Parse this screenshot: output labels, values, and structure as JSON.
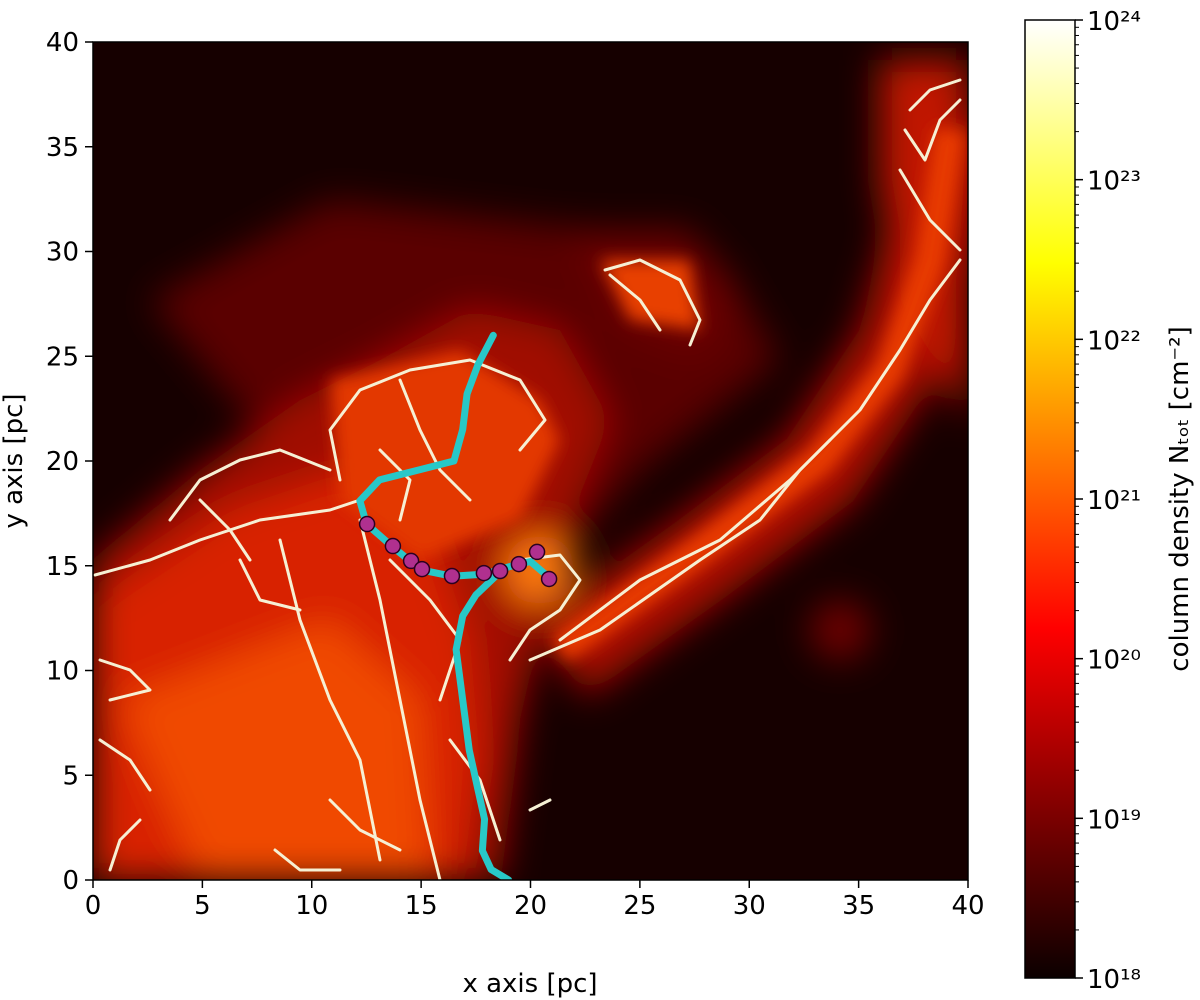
{
  "chart_data": {
    "type": "heatmap",
    "xlabel": "x axis [pc]",
    "ylabel": "y axis [pc]",
    "xlim": [
      0,
      40
    ],
    "ylim": [
      0,
      40
    ],
    "xticks": [
      0,
      5,
      10,
      15,
      20,
      25,
      30,
      35,
      40
    ],
    "yticks": [
      0,
      5,
      10,
      15,
      20,
      25,
      30,
      35,
      40
    ],
    "colorbar": {
      "label": "column density Nₜₒₜ [cm⁻²]",
      "cmap": "hot",
      "log_scale": true,
      "clim": [
        1e+18,
        1e+24
      ],
      "ticks": [
        {
          "value": 1e+18,
          "label": "10¹⁸"
        },
        {
          "value": 1e+19,
          "label": "10¹⁹"
        },
        {
          "value": 1e+20,
          "label": "10²⁰"
        },
        {
          "value": 1e+21,
          "label": "10²¹"
        },
        {
          "value": 1e+22,
          "label": "10²²"
        },
        {
          "value": 1e+23,
          "label": "10²³"
        },
        {
          "value": 1e+24,
          "label": "10²⁴"
        }
      ]
    },
    "series": [
      {
        "type": "line",
        "color": "#28c8c8",
        "x": [
          18.3,
          17.6,
          17.1,
          16.9,
          16.5,
          15.0,
          13.1,
          12.2,
          12.5,
          13.7,
          15.0,
          16.4,
          17.9,
          19.5,
          20.0,
          20.9
        ],
        "y": [
          26.0,
          24.6,
          23.2,
          21.5,
          20.0,
          19.6,
          19.1,
          18.1,
          17.0,
          15.9,
          14.8,
          14.5,
          14.6,
          15.1,
          15.2,
          14.4
        ]
      },
      {
        "type": "line",
        "color": "#28c8c8",
        "x": [
          18.6,
          17.5,
          16.9,
          16.6,
          16.9,
          17.2,
          17.6,
          17.9,
          17.8,
          18.2,
          19.0
        ],
        "y": [
          14.7,
          13.6,
          12.6,
          11.0,
          8.6,
          6.2,
          4.3,
          2.9,
          1.4,
          0.5,
          0.0
        ]
      },
      {
        "type": "scatter",
        "color": "#b0308f",
        "x": [
          12.53,
          13.71,
          14.54,
          15.04,
          16.41,
          17.87,
          18.61,
          19.47,
          20.3,
          20.85
        ],
        "y": [
          16.99,
          15.94,
          15.23,
          14.84,
          14.51,
          14.65,
          14.75,
          15.08,
          15.66,
          14.37
        ]
      }
    ]
  }
}
